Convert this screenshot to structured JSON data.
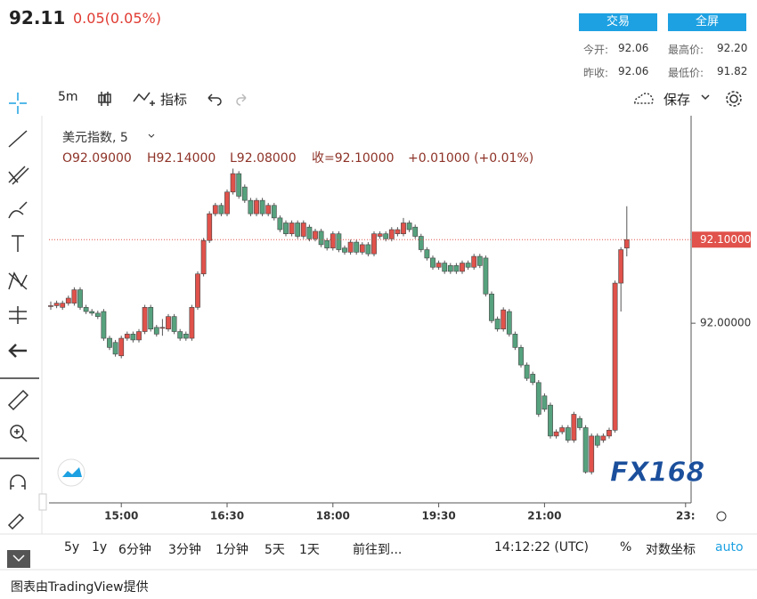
{
  "header": {
    "price": "92.11",
    "change": "0.05(0.05%)",
    "buttons": [
      "交易",
      "全屏"
    ],
    "stats": [
      {
        "label": "今开:",
        "value": "92.06"
      },
      {
        "label": "最高价:",
        "value": "92.20"
      },
      {
        "label": "昨收:",
        "value": "92.06"
      },
      {
        "label": "最低价:",
        "value": "91.82"
      }
    ]
  },
  "toolbar": {
    "interval": "5m",
    "indicators": "指标",
    "save": "保存"
  },
  "chart_data": {
    "type": "candlestick",
    "legend_title": "美元指数, 5",
    "legend_values": [
      "O92.09000",
      "H92.14000",
      "L92.08000",
      "收=92.10000",
      "+0.01000 (+0.01%)"
    ],
    "up_color": "#e0524b",
    "down_color": "#56a27e",
    "candles": [
      [
        92.021,
        92.026,
        92.016,
        92.021
      ],
      [
        92.021,
        92.027,
        92.018,
        92.024
      ],
      [
        92.019,
        92.027,
        92.016,
        92.024
      ],
      [
        92.024,
        92.033,
        92.021,
        92.03
      ],
      [
        92.024,
        92.043,
        92.021,
        92.04
      ],
      [
        92.04,
        92.043,
        92.016,
        92.019
      ],
      [
        92.019,
        92.022,
        92.011,
        92.014
      ],
      [
        92.014,
        92.017,
        92.009,
        92.012
      ],
      [
        92.012,
        92.015,
        92.005,
        92.008
      ],
      [
        92.014,
        92.017,
        91.979,
        91.982
      ],
      [
        91.982,
        91.985,
        91.968,
        91.971
      ],
      [
        91.977,
        91.98,
        91.96,
        91.963
      ],
      [
        91.961,
        91.985,
        91.958,
        91.982
      ],
      [
        91.982,
        91.99,
        91.979,
        91.987
      ],
      [
        91.987,
        91.99,
        91.977,
        91.98
      ],
      [
        91.98,
        91.993,
        91.977,
        91.99
      ],
      [
        91.99,
        92.022,
        91.987,
        92.019
      ],
      [
        92.019,
        92.022,
        91.99,
        91.993
      ],
      [
        91.995,
        91.998,
        91.984,
        91.987
      ],
      [
        91.995,
        92.005,
        91.985,
        91.995
      ],
      [
        91.993,
        92.011,
        91.99,
        92.008
      ],
      [
        92.008,
        92.011,
        91.987,
        91.99
      ],
      [
        91.99,
        91.993,
        91.979,
        91.982
      ],
      [
        91.987,
        91.99,
        91.979,
        91.982
      ],
      [
        91.982,
        92.022,
        91.979,
        92.019
      ],
      [
        92.019,
        92.062,
        92.016,
        92.059
      ],
      [
        92.059,
        92.102,
        92.056,
        92.099
      ],
      [
        92.099,
        92.134,
        92.096,
        92.131
      ],
      [
        92.131,
        92.144,
        92.128,
        92.141
      ],
      [
        92.141,
        92.144,
        92.128,
        92.131
      ],
      [
        92.131,
        92.16,
        92.128,
        92.157
      ],
      [
        92.157,
        92.185,
        92.154,
        92.179
      ],
      [
        92.179,
        92.182,
        92.149,
        92.152
      ],
      [
        92.163,
        92.166,
        92.144,
        92.147
      ],
      [
        92.147,
        92.15,
        92.128,
        92.131
      ],
      [
        92.131,
        92.15,
        92.128,
        92.147
      ],
      [
        92.147,
        92.15,
        92.128,
        92.131
      ],
      [
        92.131,
        92.144,
        92.128,
        92.141
      ],
      [
        92.141,
        92.144,
        92.123,
        92.126
      ],
      [
        92.126,
        92.129,
        92.109,
        92.112
      ],
      [
        92.12,
        92.123,
        92.104,
        92.107
      ],
      [
        92.107,
        92.123,
        92.104,
        92.12
      ],
      [
        92.12,
        92.123,
        92.101,
        92.104
      ],
      [
        92.104,
        92.123,
        92.101,
        92.12
      ],
      [
        92.115,
        92.118,
        92.098,
        92.101
      ],
      [
        92.101,
        92.113,
        92.098,
        92.11
      ],
      [
        92.11,
        92.113,
        92.091,
        92.094
      ],
      [
        92.099,
        92.102,
        92.087,
        92.09
      ],
      [
        92.09,
        92.11,
        92.087,
        92.107
      ],
      [
        92.107,
        92.11,
        92.085,
        92.088
      ],
      [
        92.09,
        92.093,
        92.082,
        92.085
      ],
      [
        92.085,
        92.1,
        92.082,
        92.097
      ],
      [
        92.097,
        92.1,
        92.082,
        92.085
      ],
      [
        92.085,
        92.097,
        92.082,
        92.094
      ],
      [
        92.094,
        92.097,
        92.08,
        92.083
      ],
      [
        92.083,
        92.11,
        92.08,
        92.107
      ],
      [
        92.104,
        92.11,
        92.101,
        92.107
      ],
      [
        92.107,
        92.11,
        92.098,
        92.101
      ],
      [
        92.101,
        92.115,
        92.098,
        92.112
      ],
      [
        92.107,
        92.115,
        92.104,
        92.112
      ],
      [
        92.107,
        92.126,
        92.104,
        92.12
      ],
      [
        92.12,
        92.123,
        92.109,
        92.112
      ],
      [
        92.115,
        92.118,
        92.101,
        92.104
      ],
      [
        92.104,
        92.107,
        92.085,
        92.088
      ],
      [
        92.088,
        92.091,
        92.075,
        92.078
      ],
      [
        92.078,
        92.081,
        92.064,
        92.067
      ],
      [
        92.067,
        92.075,
        92.064,
        92.072
      ],
      [
        92.072,
        92.075,
        92.059,
        92.062
      ],
      [
        92.069,
        92.072,
        92.059,
        92.062
      ],
      [
        92.069,
        92.072,
        92.059,
        92.062
      ],
      [
        92.062,
        92.075,
        92.059,
        92.072
      ],
      [
        92.072,
        92.075,
        92.064,
        92.067
      ],
      [
        92.067,
        92.083,
        92.064,
        92.08
      ],
      [
        92.08,
        92.083,
        92.066,
        92.069
      ],
      [
        92.078,
        92.081,
        92.032,
        92.035
      ],
      [
        92.035,
        92.038,
        92.0,
        92.003
      ],
      [
        92.005,
        92.008,
        91.99,
        91.993
      ],
      [
        91.993,
        92.019,
        91.99,
        92.016
      ],
      [
        92.014,
        92.017,
        91.984,
        91.987
      ],
      [
        91.987,
        91.99,
        91.968,
        91.971
      ],
      [
        91.971,
        91.974,
        91.947,
        91.95
      ],
      [
        91.95,
        91.953,
        91.931,
        91.934
      ],
      [
        91.939,
        91.942,
        91.926,
        91.929
      ],
      [
        91.929,
        91.932,
        91.888,
        91.891
      ],
      [
        91.913,
        91.916,
        91.894,
        91.897
      ],
      [
        91.902,
        91.905,
        91.862,
        91.865
      ],
      [
        91.865,
        91.873,
        91.862,
        91.87
      ],
      [
        91.87,
        91.878,
        91.867,
        91.875
      ],
      [
        91.875,
        91.878,
        91.857,
        91.86
      ],
      [
        91.86,
        91.894,
        91.857,
        91.891
      ],
      [
        91.886,
        91.889,
        91.872,
        91.875
      ],
      [
        91.875,
        91.878,
        91.82,
        91.822
      ],
      [
        91.822,
        91.868,
        91.819,
        91.865
      ],
      [
        91.865,
        91.868,
        91.851,
        91.854
      ],
      [
        91.86,
        91.868,
        91.857,
        91.865
      ],
      [
        91.865,
        91.875,
        91.862,
        91.872
      ],
      [
        91.872,
        92.051,
        91.869,
        92.048
      ],
      [
        92.048,
        92.091,
        92.014,
        92.088
      ],
      [
        92.09,
        92.14,
        92.08,
        92.1
      ]
    ],
    "ylim": [
      91.785,
      92.243
    ],
    "yticks": [
      {
        "value": 92,
        "label": "92.00000"
      }
    ],
    "price_line": {
      "value": 92.1,
      "label": "92.10000"
    },
    "xticks": [
      {
        "value": 12,
        "label": "15:00"
      },
      {
        "value": 30,
        "label": "16:30"
      },
      {
        "value": 48,
        "label": "18:00"
      },
      {
        "value": 66,
        "label": "19:30"
      },
      {
        "value": 84,
        "label": "21:00"
      },
      {
        "value": 108,
        "label": "23:"
      }
    ]
  },
  "range_bar": {
    "ranges": [
      "5y",
      "1y",
      "6分钟",
      "3分钟",
      "1分钟",
      "5天",
      "1天"
    ],
    "goto": "前往到...",
    "time": "14:12:22 (UTC)",
    "percent": "%",
    "log": "对数坐标",
    "auto": "auto"
  },
  "footer": "图表由TradingView提供",
  "logo": "FX168"
}
